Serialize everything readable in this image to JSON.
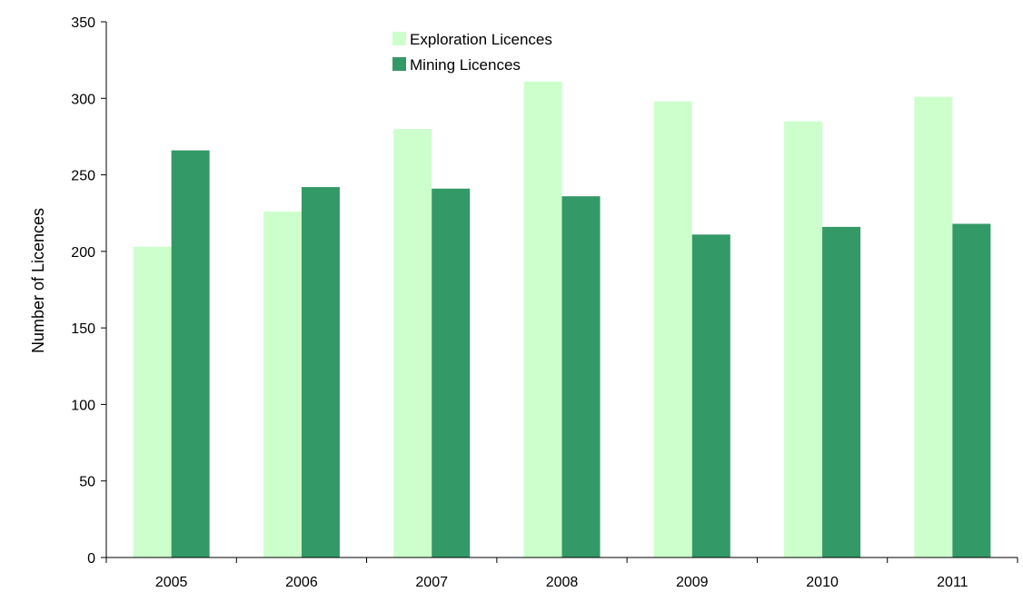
{
  "chart_data": {
    "type": "bar",
    "title": "",
    "xlabel": "",
    "ylabel": "Number of Licences",
    "ylim": [
      0,
      350
    ],
    "yticks": [
      0,
      50,
      100,
      150,
      200,
      250,
      300,
      350
    ],
    "categories": [
      "2005",
      "2006",
      "2007",
      "2008",
      "2009",
      "2010",
      "2011"
    ],
    "series": [
      {
        "name": "Exploration Licences",
        "color": "#ccffcc",
        "values": [
          203,
          226,
          280,
          311,
          298,
          285,
          301
        ]
      },
      {
        "name": "Mining Licences",
        "color": "#339966",
        "values": [
          266,
          242,
          241,
          236,
          211,
          216,
          218
        ]
      }
    ],
    "grid": false,
    "legend_position": "top-center"
  }
}
